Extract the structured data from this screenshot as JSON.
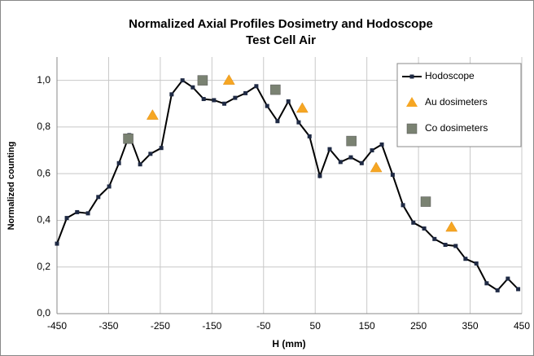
{
  "chart_data": {
    "type": "scatter",
    "title": "Normalized Axial Profiles Dosimetry and Hodoscope",
    "subtitle": "Test Cell Air",
    "x_label": "H (mm)",
    "y_label": "Normalized counting",
    "xlim": [
      -450,
      450
    ],
    "xticks": [
      -450,
      -350,
      -250,
      -150,
      -50,
      50,
      150,
      250,
      350,
      450
    ],
    "ylim": [
      0,
      1.1
    ],
    "yticks": [
      {
        "value": 0,
        "label": "0,0"
      },
      {
        "value": 0.2,
        "label": "0,2"
      },
      {
        "value": 0.4,
        "label": "0,4"
      },
      {
        "value": 0.6,
        "label": "0,6"
      },
      {
        "value": 0.8,
        "label": "0,8"
      },
      {
        "value": 1.0,
        "label": "1,0"
      }
    ],
    "grid": true,
    "legend": "upper right",
    "series": [
      {
        "name": "Hodoscope",
        "color": "#000000",
        "marker": "square",
        "line": true,
        "x": [
          -450,
          -431,
          -411,
          -390,
          -370,
          -349,
          -330,
          -310,
          -289,
          -269,
          -248,
          -228,
          -207,
          -187,
          -166,
          -146,
          -126,
          -105,
          -85,
          -64,
          -43,
          -23,
          -2,
          18,
          39,
          59,
          78,
          99,
          119,
          140,
          160,
          179,
          200,
          220,
          240,
          261,
          281,
          302,
          322,
          341,
          362,
          382,
          403,
          423,
          443
        ],
        "y": [
          0.3,
          0.41,
          0.435,
          0.43,
          0.5,
          0.545,
          0.645,
          0.765,
          0.64,
          0.685,
          0.71,
          0.94,
          1.0,
          0.97,
          0.92,
          0.915,
          0.9,
          0.925,
          0.945,
          0.975,
          0.89,
          0.825,
          0.91,
          0.82,
          0.76,
          0.59,
          0.705,
          0.65,
          0.67,
          0.645,
          0.7,
          0.725,
          0.595,
          0.465,
          0.39,
          0.365,
          0.32,
          0.295,
          0.29,
          0.235,
          0.215,
          0.13,
          0.1,
          0.15,
          0.105
        ]
      },
      {
        "name": "Au dosimeters",
        "color": "#f6a623",
        "marker": "triangle",
        "line": false,
        "x": [
          -265,
          -117,
          25,
          168,
          314
        ],
        "y": [
          0.85,
          1.0,
          0.88,
          0.625,
          0.37
        ]
      },
      {
        "name": "Co dosimeters",
        "color": "#7a8272",
        "marker": "square",
        "line": false,
        "x": [
          -312,
          -168,
          -27,
          120,
          264
        ],
        "y": [
          0.75,
          1.0,
          0.96,
          0.74,
          0.48
        ]
      }
    ]
  }
}
